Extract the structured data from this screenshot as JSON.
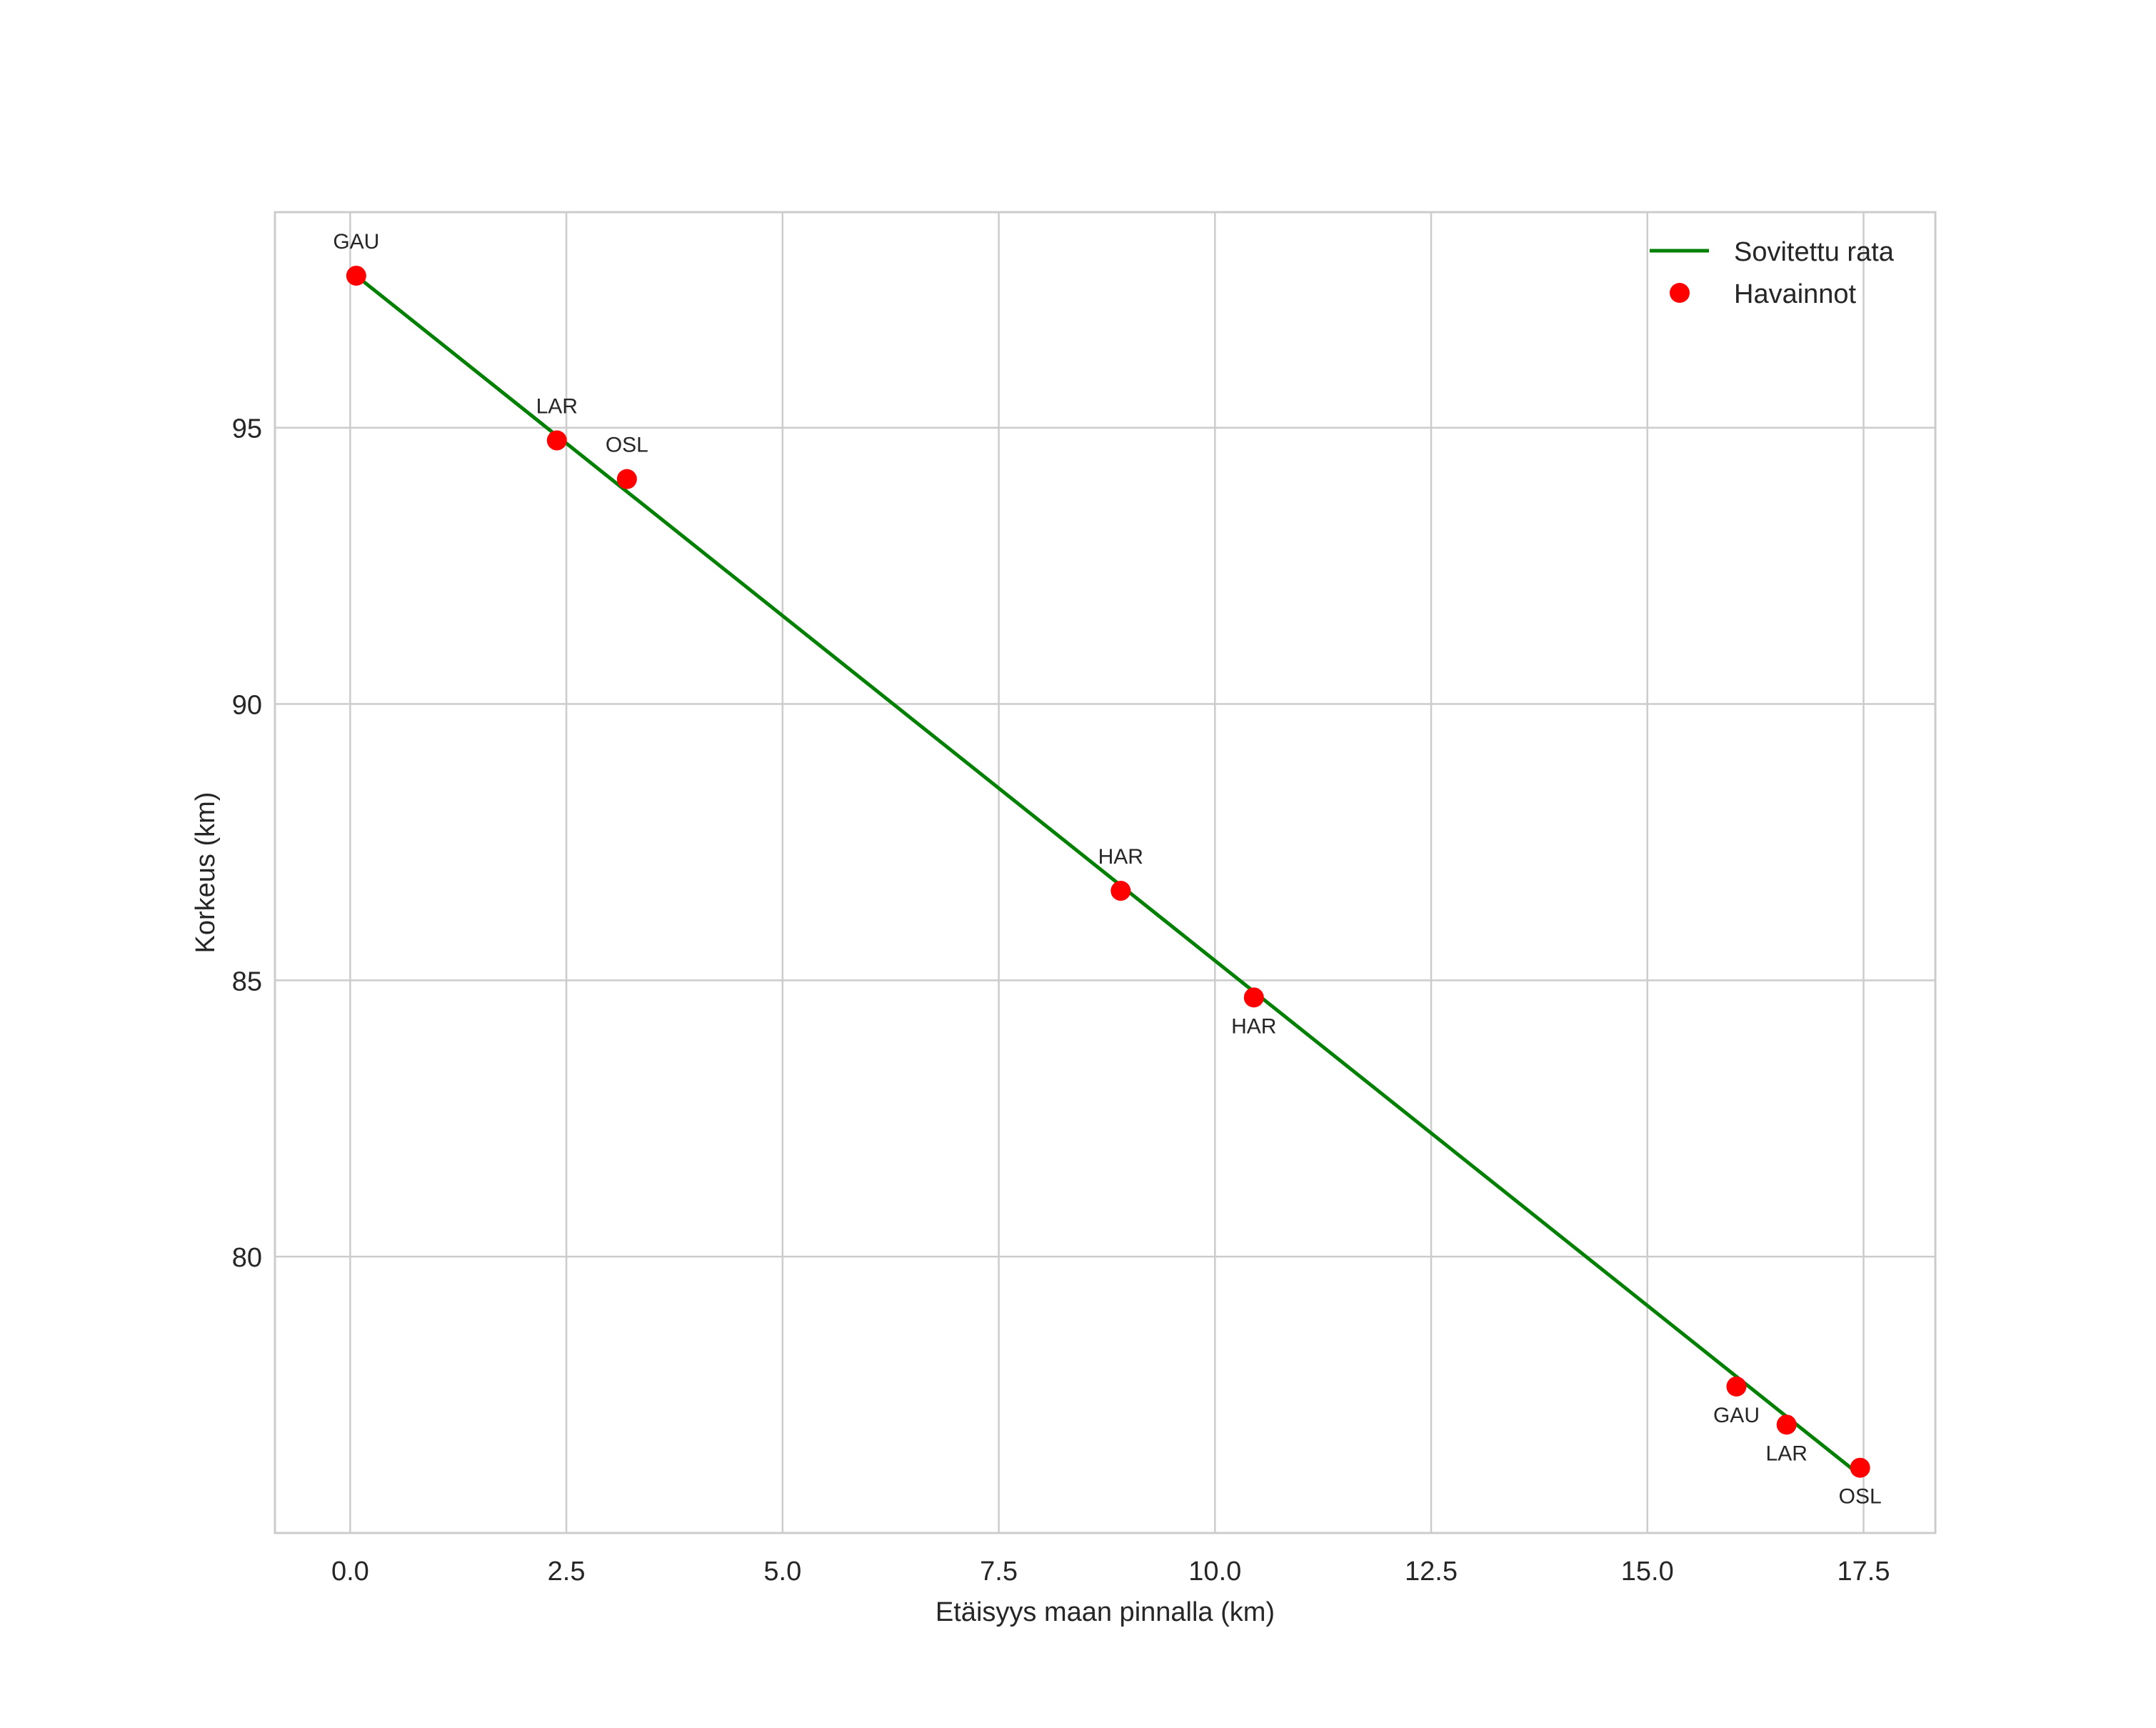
{
  "chart_data": {
    "type": "line",
    "title": "",
    "xlabel": "Etäisyys maan pinnalla (km)",
    "ylabel": "Korkeus (km)",
    "xlim": [
      -0.87,
      18.33
    ],
    "ylim": [
      75.0,
      98.9
    ],
    "grid": true,
    "legend_position": "upper right",
    "x_ticks": [
      0.0,
      2.5,
      5.0,
      7.5,
      10.0,
      12.5,
      15.0,
      17.5
    ],
    "x_tick_labels": [
      "0.0",
      "2.5",
      "5.0",
      "7.5",
      "10.0",
      "12.5",
      "15.0",
      "17.5"
    ],
    "y_ticks": [
      80,
      85,
      90,
      95
    ],
    "y_tick_labels": [
      "80",
      "85",
      "90",
      "95"
    ],
    "series": [
      {
        "name": "Sovitettu rata",
        "kind": "line",
        "color": "#008000",
        "x": [
          0.07,
          17.4
        ],
        "y": [
          97.75,
          76.12
        ]
      },
      {
        "name": "Havainnot",
        "kind": "scatter",
        "color": "#ff0000",
        "points": [
          {
            "label": "GAU",
            "x": 0.07,
            "y": 97.75,
            "label_pos": "above"
          },
          {
            "label": "LAR",
            "x": 2.39,
            "y": 94.77,
            "label_pos": "above"
          },
          {
            "label": "OSL",
            "x": 3.2,
            "y": 94.07,
            "label_pos": "above"
          },
          {
            "label": "HAR",
            "x": 8.91,
            "y": 86.62,
            "label_pos": "above"
          },
          {
            "label": "HAR",
            "x": 10.45,
            "y": 84.69,
            "label_pos": "below"
          },
          {
            "label": "GAU",
            "x": 16.03,
            "y": 77.65,
            "label_pos": "below"
          },
          {
            "label": "LAR",
            "x": 16.61,
            "y": 76.96,
            "label_pos": "below"
          },
          {
            "label": "OSL",
            "x": 17.46,
            "y": 76.18,
            "label_pos": "below"
          }
        ]
      }
    ]
  },
  "legend": {
    "items": [
      {
        "label": "Sovitettu rata",
        "symbol": "line",
        "color": "#008000"
      },
      {
        "label": "Havainnot",
        "symbol": "dot",
        "color": "#ff0000"
      }
    ]
  },
  "style": {
    "grid_color": "#cccccc",
    "text_color": "#262626",
    "background": "#ffffff"
  }
}
